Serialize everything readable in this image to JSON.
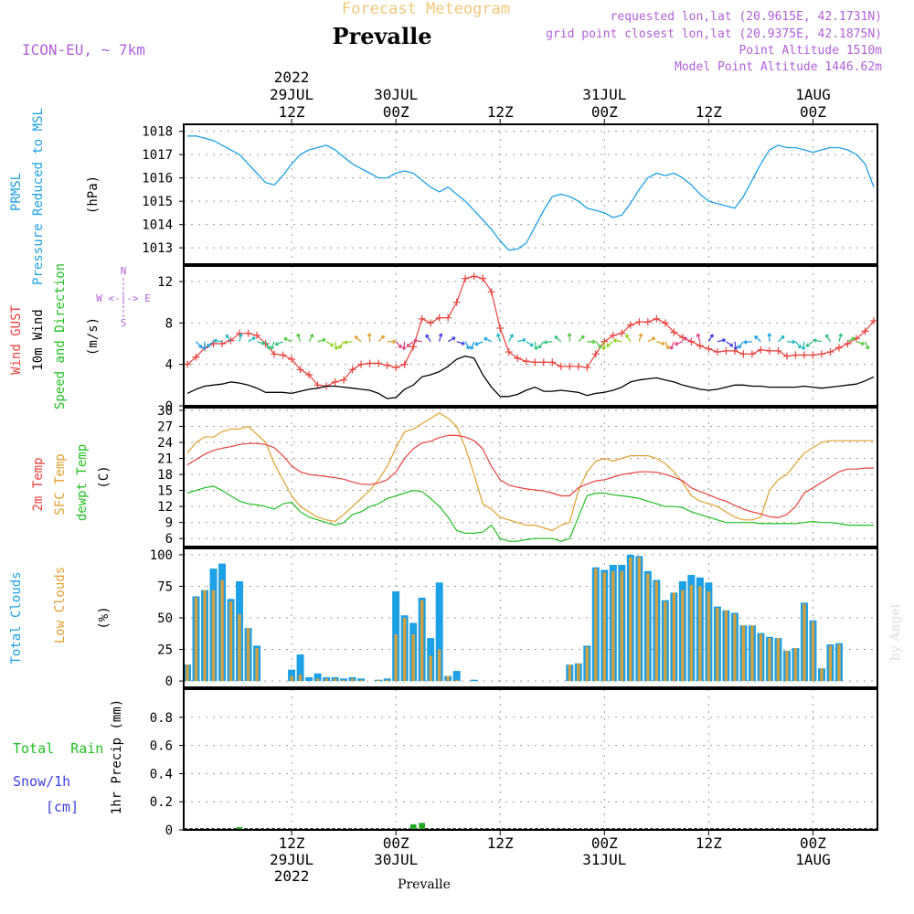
{
  "header": {
    "title": "Forecast Meteogram",
    "station": "Prevalle",
    "model": "ICON-EU, ~ 7km",
    "requested": "requested lon,lat (20.9615E, 42.1731N)",
    "gridpoint": "grid point closest lon,lat (20.9375E, 42.1875N)",
    "altitude": "Point Altitude 1510m",
    "model_altitude": "Model Point Altitude 1446.62m",
    "footer": "Prevalle",
    "watermark": "by Angel"
  },
  "time_axis": {
    "top": [
      {
        "t": 12,
        "lines": [
          "2022",
          "29JUL",
          "12Z"
        ]
      },
      {
        "t": 24,
        "lines": [
          "30JUL",
          "00Z"
        ]
      },
      {
        "t": 36,
        "lines": [
          "12Z"
        ]
      },
      {
        "t": 48,
        "lines": [
          "31JUL",
          "00Z"
        ]
      },
      {
        "t": 60,
        "lines": [
          "12Z"
        ]
      },
      {
        "t": 72,
        "lines": [
          "1AUG",
          "00Z"
        ]
      }
    ],
    "bottom": [
      {
        "t": 12,
        "lines": [
          "12Z",
          "29JUL",
          "2022"
        ]
      },
      {
        "t": 24,
        "lines": [
          "00Z",
          "30JUL"
        ]
      },
      {
        "t": 36,
        "lines": [
          "12Z"
        ]
      },
      {
        "t": 48,
        "lines": [
          "00Z",
          "31JUL"
        ]
      },
      {
        "t": 60,
        "lines": [
          "12Z"
        ]
      },
      {
        "t": 72,
        "lines": [
          "00Z",
          "1AUG"
        ]
      }
    ]
  },
  "panel_labels": {
    "pressure": {
      "name1": "PRMSL",
      "name2": "Pressure Reduced to MSL",
      "unit": "(hPa)"
    },
    "wind": {
      "gust": "Wind GUST",
      "wind10": "10m Wind",
      "dir": "Speed and Direction",
      "unit": "(m/s)",
      "compass_n": "N",
      "compass_s": "S",
      "compass_ew": "W <-|-> E"
    },
    "temp": {
      "t2m": "2m Temp",
      "sfc": "SFC Temp",
      "dew": "dewpt Temp",
      "unit": "(C)"
    },
    "clouds": {
      "total": "Total Clouds",
      "low": "Low Clouds",
      "unit": "(%)"
    },
    "precip": {
      "rain": "Total  Rain",
      "snow": "Snow/1h",
      "snow_unit": "[cm]",
      "unit": "1hr Precip (mm)"
    }
  },
  "colors": {
    "pressure": "#1ca0e6",
    "gust": "#e8413c",
    "wind10": "#000000",
    "t2m": "#e8413c",
    "sfc": "#e0a030",
    "dew": "#22c022",
    "total_cloud": "#1ca0e6",
    "low_cloud": "#d0a040",
    "rain": "#22aa22",
    "title_orange": "#f0c878",
    "purple": "#b060d8"
  },
  "chart_data": [
    {
      "type": "line",
      "panel": "pressure",
      "ylabel": "PRMSL Pressure Reduced to MSL (hPa)",
      "ylim": [
        1012.3,
        1018.3
      ],
      "yticks": [
        1013,
        1014,
        1015,
        1016,
        1017,
        1018
      ],
      "x": [
        0,
        1,
        2,
        3,
        4,
        5,
        6,
        7,
        8,
        9,
        10,
        11,
        12,
        13,
        14,
        15,
        16,
        17,
        18,
        19,
        20,
        21,
        22,
        23,
        24,
        25,
        26,
        27,
        28,
        29,
        30,
        31,
        32,
        33,
        34,
        35,
        36,
        37,
        38,
        39,
        40,
        41,
        42,
        43,
        44,
        45,
        46,
        47,
        48,
        49,
        50,
        51,
        52,
        53,
        54,
        55,
        56,
        57,
        58,
        59,
        60,
        61,
        62,
        63,
        64,
        65,
        66,
        67,
        68,
        69,
        70,
        71,
        72,
        73,
        74,
        75,
        76,
        77,
        78,
        79
      ],
      "series": [
        {
          "values": [
            1017.8,
            1017.8,
            1017.7,
            1017.6,
            1017.4,
            1017.2,
            1017.0,
            1016.6,
            1016.2,
            1015.8,
            1015.7,
            1016.1,
            1016.6,
            1017.0,
            1017.2,
            1017.3,
            1017.4,
            1017.2,
            1016.9,
            1016.6,
            1016.4,
            1016.2,
            1016.0,
            1016.0,
            1016.2,
            1016.3,
            1016.2,
            1015.9,
            1015.6,
            1015.4,
            1015.6,
            1015.3,
            1015.0,
            1014.6,
            1014.2,
            1013.8,
            1013.3,
            1012.9,
            1012.95,
            1013.2,
            1013.9,
            1014.6,
            1015.2,
            1015.3,
            1015.2,
            1015.0,
            1014.7,
            1014.6,
            1014.5,
            1014.3,
            1014.4,
            1014.9,
            1015.5,
            1016.0,
            1016.2,
            1016.1,
            1016.2,
            1016.0,
            1015.7,
            1015.3,
            1015.0,
            1014.9,
            1014.8,
            1014.7,
            1015.2,
            1015.9,
            1016.6,
            1017.2,
            1017.4,
            1017.3,
            1017.3,
            1017.2,
            1017.1,
            1017.2,
            1017.3,
            1017.3,
            1017.2,
            1017.0,
            1016.6,
            1015.6
          ]
        }
      ]
    },
    {
      "type": "line",
      "panel": "wind",
      "ylabel": "Wind GUST / 10m Wind Speed and Direction (m/s)",
      "ylim": [
        0,
        13.5
      ],
      "yticks": [
        0,
        4,
        8,
        12
      ],
      "x": [
        0,
        1,
        2,
        3,
        4,
        5,
        6,
        7,
        8,
        9,
        10,
        11,
        12,
        13,
        14,
        15,
        16,
        17,
        18,
        19,
        20,
        21,
        22,
        23,
        24,
        25,
        26,
        27,
        28,
        29,
        30,
        31,
        32,
        33,
        34,
        35,
        36,
        37,
        38,
        39,
        40,
        41,
        42,
        43,
        44,
        45,
        46,
        47,
        48,
        49,
        50,
        51,
        52,
        53,
        54,
        55,
        56,
        57,
        58,
        59,
        60,
        61,
        62,
        63,
        64,
        65,
        66,
        67,
        68,
        69,
        70,
        71,
        72,
        73,
        74,
        75,
        76,
        77,
        78,
        79
      ],
      "series": [
        {
          "name": "Wind GUST",
          "values": [
            4.0,
            4.7,
            5.6,
            6.0,
            6.0,
            6.3,
            7.0,
            7.0,
            6.8,
            6.0,
            5.0,
            4.9,
            4.5,
            3.5,
            3.0,
            2.0,
            1.9,
            2.3,
            2.5,
            3.5,
            4.0,
            4.1,
            4.1,
            3.9,
            3.7,
            4.0,
            5.7,
            8.4,
            8.0,
            8.5,
            8.5,
            10.0,
            12.3,
            12.5,
            12.3,
            11.0,
            7.5,
            5.2,
            4.6,
            4.3,
            4.2,
            4.2,
            4.2,
            3.8,
            3.8,
            3.8,
            3.7,
            5.0,
            6.2,
            6.8,
            7.0,
            7.8,
            8.1,
            8.1,
            8.4,
            8.0,
            7.1,
            6.6,
            6.2,
            5.8,
            5.5,
            5.2,
            5.3,
            5.3,
            5.0,
            5.0,
            5.4,
            5.3,
            5.3,
            4.8,
            4.9,
            4.9,
            4.9,
            5.0,
            5.2,
            5.6,
            6.0,
            6.5,
            7.2,
            8.2
          ]
        },
        {
          "name": "10m Wind",
          "values": [
            1.2,
            1.6,
            1.9,
            2.0,
            2.1,
            2.3,
            2.2,
            2.0,
            1.7,
            1.3,
            1.3,
            1.3,
            1.2,
            1.4,
            1.6,
            1.7,
            1.9,
            1.9,
            1.8,
            1.7,
            1.6,
            1.5,
            1.2,
            0.7,
            0.8,
            1.6,
            2.0,
            2.8,
            3.0,
            3.3,
            3.8,
            4.5,
            4.8,
            4.6,
            3.0,
            1.8,
            0.9,
            0.9,
            1.1,
            1.5,
            1.8,
            1.4,
            1.4,
            1.5,
            1.4,
            1.3,
            1.0,
            1.2,
            1.3,
            1.5,
            1.8,
            2.3,
            2.5,
            2.6,
            2.7,
            2.5,
            2.3,
            2.0,
            1.8,
            1.6,
            1.5,
            1.6,
            1.8,
            2.0,
            2.0,
            1.9,
            1.9,
            1.8,
            1.8,
            1.8,
            1.8,
            1.9,
            1.8,
            1.7,
            1.8,
            1.9,
            2.0,
            2.1,
            2.4,
            2.8
          ]
        }
      ]
    },
    {
      "type": "line",
      "panel": "temp",
      "ylabel": "2m Temp / SFC Temp / dewpt Temp (C)",
      "ylim": [
        4.5,
        30.5
      ],
      "yticks": [
        6,
        9,
        12,
        15,
        18,
        21,
        24,
        27,
        30
      ],
      "x": [
        0,
        1,
        2,
        3,
        4,
        5,
        6,
        7,
        8,
        9,
        10,
        11,
        12,
        13,
        14,
        15,
        16,
        17,
        18,
        19,
        20,
        21,
        22,
        23,
        24,
        25,
        26,
        27,
        28,
        29,
        30,
        31,
        32,
        33,
        34,
        35,
        36,
        37,
        38,
        39,
        40,
        41,
        42,
        43,
        44,
        45,
        46,
        47,
        48,
        49,
        50,
        51,
        52,
        53,
        54,
        55,
        56,
        57,
        58,
        59,
        60,
        61,
        62,
        63,
        64,
        65,
        66,
        67,
        68,
        69,
        70,
        71,
        72,
        73,
        74,
        75,
        76,
        77,
        78,
        79
      ],
      "series": [
        {
          "name": "2m Temp",
          "values": [
            19.8,
            20.8,
            21.8,
            22.5,
            22.9,
            23.2,
            23.6,
            23.8,
            23.8,
            23.6,
            23.0,
            21.5,
            19.6,
            18.5,
            18.0,
            17.8,
            17.6,
            17.4,
            17.1,
            16.6,
            16.2,
            16.1,
            16.4,
            17.0,
            18.5,
            21.0,
            22.8,
            23.9,
            24.2,
            24.9,
            25.3,
            25.3,
            25.0,
            24.3,
            22.8,
            19.5,
            17.0,
            16.0,
            15.6,
            15.3,
            15.1,
            14.9,
            14.5,
            14.0,
            14.0,
            15.5,
            16.2,
            16.8,
            17.0,
            17.5,
            18.0,
            18.2,
            18.5,
            18.5,
            18.4,
            18.0,
            17.5,
            16.8,
            15.5,
            14.8,
            14.2,
            13.5,
            13.0,
            12.2,
            11.5,
            11.0,
            10.6,
            10.1,
            9.9,
            10.5,
            12.0,
            14.5,
            15.5,
            16.5,
            17.5,
            18.5,
            19.0,
            19.0,
            19.2,
            19.2
          ]
        },
        {
          "name": "SFC Temp",
          "values": [
            22.0,
            24.0,
            25.0,
            25.0,
            26.0,
            26.5,
            26.5,
            27.0,
            25.5,
            24.0,
            20.0,
            17.0,
            14.0,
            12.0,
            11.0,
            10.0,
            9.5,
            9.2,
            10.5,
            12.0,
            13.5,
            15.0,
            17.0,
            19.5,
            23.0,
            26.0,
            26.5,
            27.5,
            28.5,
            29.5,
            28.5,
            27.0,
            23.0,
            18.0,
            12.5,
            11.5,
            10.0,
            9.5,
            9.0,
            8.5,
            8.5,
            8.0,
            7.5,
            8.5,
            9.0,
            15.0,
            18.5,
            20.5,
            21.0,
            20.5,
            21.0,
            21.5,
            21.5,
            21.5,
            21.0,
            20.0,
            18.5,
            16.5,
            14.0,
            13.0,
            12.5,
            12.0,
            11.0,
            10.0,
            9.5,
            9.5,
            10.0,
            15.0,
            17.0,
            18.0,
            20.0,
            22.0,
            23.0,
            24.0,
            24.3,
            24.3,
            24.3,
            24.3,
            24.3,
            24.3
          ]
        },
        {
          "name": "dewpt Temp",
          "values": [
            14.5,
            15.0,
            15.5,
            15.8,
            15.0,
            14.0,
            13.0,
            12.5,
            12.3,
            12.0,
            11.5,
            12.5,
            12.8,
            11.0,
            10.0,
            9.5,
            9.0,
            8.5,
            9.0,
            10.5,
            11.0,
            12.0,
            12.5,
            13.5,
            14.0,
            14.5,
            15.0,
            14.8,
            13.5,
            12.0,
            10.0,
            7.5,
            7.0,
            7.0,
            7.2,
            8.5,
            6.0,
            5.5,
            5.5,
            5.8,
            6.0,
            6.0,
            6.0,
            5.5,
            6.0,
            10.0,
            14.0,
            14.5,
            14.5,
            14.2,
            14.0,
            13.8,
            13.5,
            13.0,
            12.5,
            12.0,
            12.0,
            11.8,
            11.0,
            10.5,
            10.0,
            9.5,
            9.0,
            9.0,
            9.0,
            9.0,
            8.8,
            8.8,
            8.8,
            8.8,
            8.8,
            9.0,
            9.2,
            9.0,
            9.0,
            8.8,
            8.5,
            8.5,
            8.5,
            8.5
          ]
        }
      ]
    },
    {
      "type": "bar",
      "panel": "clouds",
      "ylabel": "Total Clouds / Low Clouds (%)",
      "ylim": [
        -5,
        105
      ],
      "yticks": [
        0,
        25,
        50,
        75,
        100
      ],
      "x": [
        0,
        1,
        2,
        3,
        4,
        5,
        6,
        7,
        8,
        9,
        10,
        11,
        12,
        13,
        14,
        15,
        16,
        17,
        18,
        19,
        20,
        21,
        22,
        23,
        24,
        25,
        26,
        27,
        28,
        29,
        30,
        31,
        32,
        33,
        34,
        35,
        36,
        37,
        38,
        39,
        40,
        41,
        42,
        43,
        44,
        45,
        46,
        47,
        48,
        49,
        50,
        51,
        52,
        53,
        54,
        55,
        56,
        57,
        58,
        59,
        60,
        61,
        62,
        63,
        64,
        65,
        66,
        67,
        68,
        69,
        70,
        71,
        72,
        73,
        74,
        75,
        76,
        77,
        78,
        79
      ],
      "series": [
        {
          "name": "Total Clouds",
          "values": [
            13,
            67,
            72,
            89,
            93,
            65,
            79,
            42,
            28,
            0,
            0,
            0,
            9,
            21,
            3,
            6,
            3,
            3,
            2,
            3,
            2,
            0,
            1,
            2,
            71,
            52,
            46,
            66,
            34,
            78,
            4,
            8,
            0,
            1,
            0,
            0,
            0,
            0,
            0,
            0,
            0,
            0,
            0,
            0,
            13,
            14,
            28,
            90,
            88,
            92,
            92,
            100,
            99,
            87,
            80,
            64,
            70,
            79,
            84,
            82,
            78,
            59,
            56,
            54,
            44,
            44,
            38,
            35,
            34,
            24,
            26,
            62,
            48,
            10,
            29,
            30,
            0,
            0,
            0,
            0
          ]
        },
        {
          "name": "Low Clouds",
          "values": [
            13,
            66,
            72,
            72,
            80,
            63,
            53,
            42,
            26,
            0,
            0,
            0,
            4,
            5,
            0,
            2,
            2,
            2,
            1,
            2,
            1,
            0,
            1,
            1,
            37,
            50,
            37,
            64,
            20,
            25,
            4,
            1,
            0,
            0,
            0,
            0,
            0,
            0,
            0,
            0,
            0,
            0,
            0,
            0,
            13,
            14,
            27,
            89,
            86,
            87,
            87,
            98,
            98,
            85,
            79,
            63,
            70,
            72,
            76,
            75,
            71,
            58,
            56,
            53,
            44,
            44,
            37,
            34,
            34,
            24,
            26,
            61,
            47,
            10,
            28,
            29,
            0,
            0,
            0,
            0
          ]
        }
      ]
    },
    {
      "type": "bar",
      "panel": "precip",
      "ylabel": "1hr Precip (mm)",
      "ylim": [
        0,
        1.0
      ],
      "yticks": [
        0,
        0.2,
        0.4,
        0.6,
        0.8
      ],
      "x": [
        6,
        26,
        27
      ],
      "series": [
        {
          "name": "Total Rain",
          "values": [
            0.02,
            0.04,
            0.05
          ]
        }
      ]
    }
  ]
}
